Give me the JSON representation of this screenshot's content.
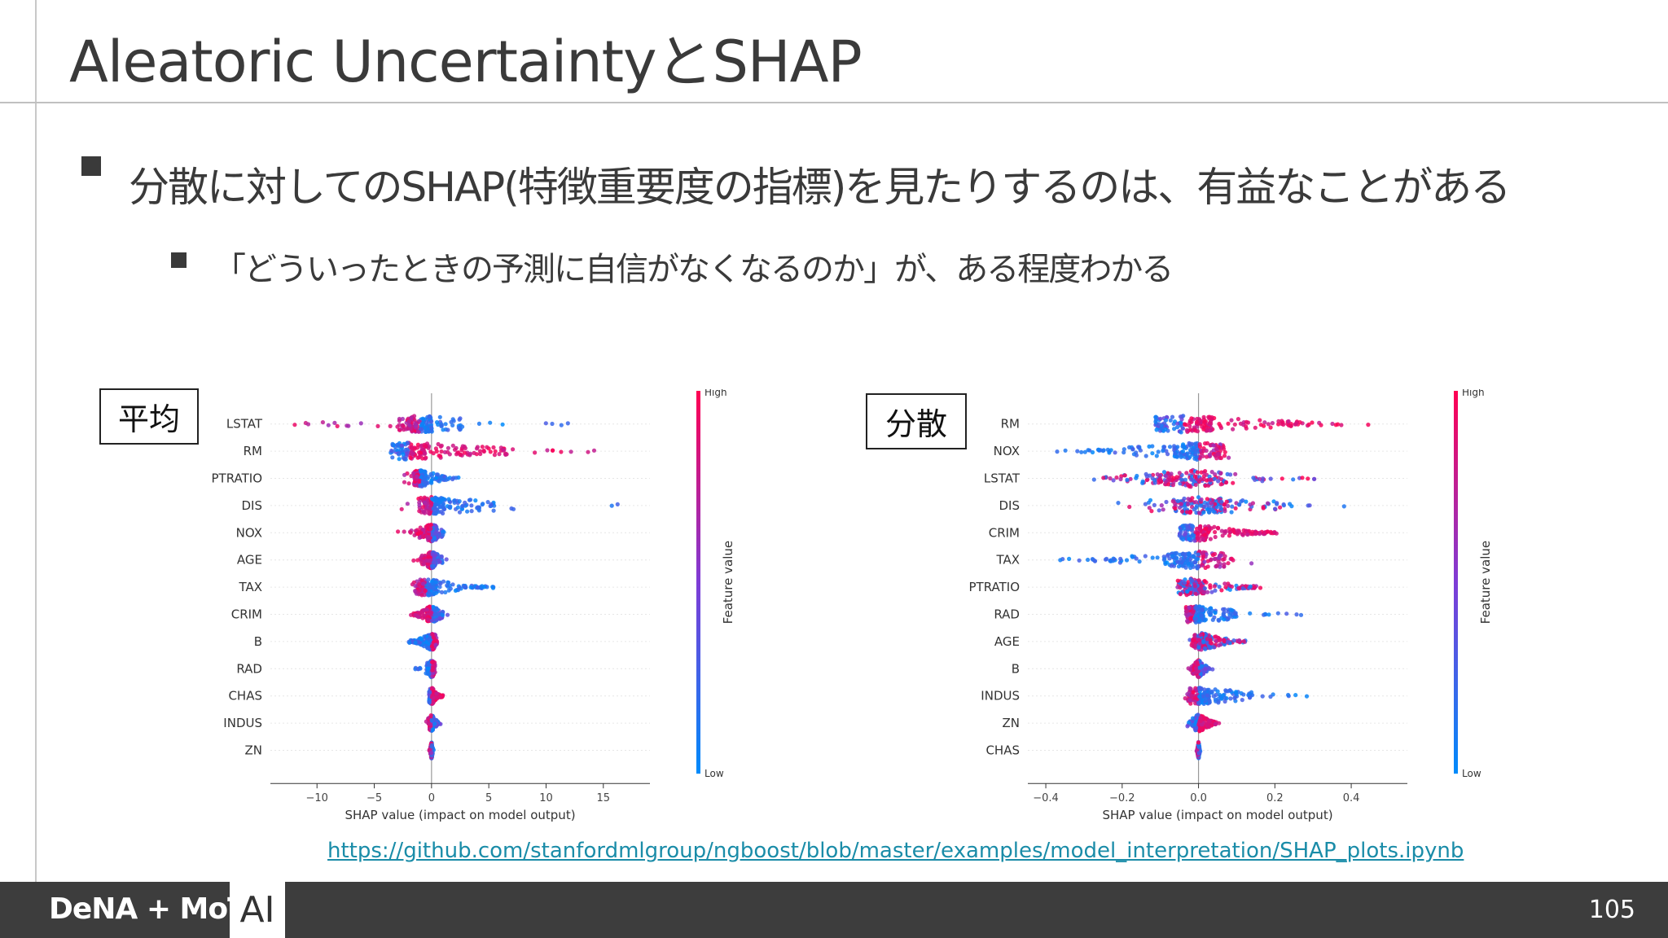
{
  "slide": {
    "title": "Aleatoric UncertaintyとSHAP",
    "bullet1": "分散に対してのSHAP(特徴重要度の指標)を見たりするのは、有益なことがある",
    "bullet2": "「どういったときの予測に自信がなくなるのか」が、ある程度わかる",
    "link": "https://github.com/stanfordmlgroup/ngboost/blob/master/examples/model_interpretation/SHAP_plots.ipynb",
    "footer_logo": "DeNA + MoT",
    "footer_ai": "AI",
    "page_number": "105"
  },
  "colors": {
    "high": "#ff0052",
    "low": "#008bfb",
    "link": "#1a8ca8",
    "footer": "#3d3d3d"
  },
  "chart_data": [
    {
      "type": "scatter",
      "subtype": "shap-beeswarm",
      "panel_label": "平均",
      "xlabel": "SHAP value (impact on model output)",
      "colorbar_label": "Feature value",
      "colorbar_high": "High",
      "colorbar_low": "Low",
      "xlim": [
        -13.5,
        18.5
      ],
      "xticks": [
        -10,
        -5,
        0,
        5,
        10,
        15
      ],
      "xtick_labels": [
        "−10",
        "−5",
        "0",
        "5",
        "10",
        "15"
      ],
      "features": [
        {
          "name": "LSTAT",
          "min": -12,
          "max": 12,
          "q1": -3,
          "q3": 3,
          "core": -1,
          "color_trend": "low-right"
        },
        {
          "name": "RM",
          "min": -4,
          "max": 15,
          "q1": -2.5,
          "q3": 6.5,
          "core": -2,
          "color_trend": "high-right"
        },
        {
          "name": "PTRATIO",
          "min": -3,
          "max": 2.5,
          "q1": -1.5,
          "q3": 1.5,
          "core": -1,
          "color_trend": "low-right"
        },
        {
          "name": "DIS",
          "min": -3,
          "max": 17,
          "q1": -1,
          "q3": 5.5,
          "core": 0,
          "color_trend": "low-right"
        },
        {
          "name": "NOX",
          "min": -3,
          "max": 1.5,
          "q1": -1.5,
          "q3": 1,
          "core": 0,
          "color_trend": "high-left"
        },
        {
          "name": "AGE",
          "min": -2,
          "max": 1.5,
          "q1": -1,
          "q3": 1,
          "core": 0,
          "color_trend": "high-left"
        },
        {
          "name": "TAX",
          "min": -2,
          "max": 5.5,
          "q1": -1,
          "q3": 4.5,
          "core": -0.5,
          "color_trend": "low-right"
        },
        {
          "name": "CRIM",
          "min": -2,
          "max": 2,
          "q1": -1.5,
          "q3": 1,
          "core": 0,
          "color_trend": "high-left"
        },
        {
          "name": "B",
          "min": -2,
          "max": 0.5,
          "q1": -2,
          "q3": 0.5,
          "core": 0,
          "color_trend": "low-left"
        },
        {
          "name": "RAD",
          "min": -1.5,
          "max": 0.5,
          "q1": -0.5,
          "q3": 0.3,
          "core": 0,
          "color_trend": "low-left"
        },
        {
          "name": "CHAS",
          "min": -0.2,
          "max": 1,
          "q1": -0.2,
          "q3": 1,
          "core": 0,
          "color_trend": "high-right"
        },
        {
          "name": "INDUS",
          "min": -0.5,
          "max": 0.8,
          "q1": -0.3,
          "q3": 0.6,
          "core": 0,
          "color_trend": "high-left"
        },
        {
          "name": "ZN",
          "min": -0.2,
          "max": 0.2,
          "q1": -0.1,
          "q3": 0.1,
          "core": 0,
          "color_trend": "low-right"
        }
      ]
    },
    {
      "type": "scatter",
      "subtype": "shap-beeswarm",
      "panel_label": "分散",
      "xlabel": "SHAP value (impact on model output)",
      "colorbar_label": "Feature value",
      "colorbar_high": "High",
      "colorbar_low": "Low",
      "xlim": [
        -0.43,
        0.53
      ],
      "xticks": [
        -0.4,
        -0.2,
        0.0,
        0.2,
        0.4
      ],
      "xtick_labels": [
        "−0.4",
        "−0.2",
        "0.0",
        "0.2",
        "0.4"
      ],
      "features": [
        {
          "name": "RM",
          "min": -0.16,
          "max": 0.45,
          "q1": -0.05,
          "q3": 0.38,
          "core": -0.04,
          "color_trend": "high-right"
        },
        {
          "name": "NOX",
          "min": -0.4,
          "max": 0.13,
          "q1": -0.3,
          "q3": 0.08,
          "core": 0,
          "color_trend": "low-left"
        },
        {
          "name": "LSTAT",
          "min": -0.3,
          "max": 0.33,
          "q1": -0.25,
          "q3": 0.25,
          "core": -0.02,
          "color_trend": "high-mixed"
        },
        {
          "name": "DIS",
          "min": -0.27,
          "max": 0.48,
          "q1": -0.15,
          "q3": 0.25,
          "core": 0,
          "color_trend": "low-mixed"
        },
        {
          "name": "CRIM",
          "min": -0.05,
          "max": 0.21,
          "q1": -0.03,
          "q3": 0.2,
          "core": -0.01,
          "color_trend": "high-right"
        },
        {
          "name": "TAX",
          "min": -0.39,
          "max": 0.16,
          "q1": -0.3,
          "q3": 0.1,
          "core": 0,
          "color_trend": "low-left"
        },
        {
          "name": "PTRATIO",
          "min": -0.08,
          "max": 0.18,
          "q1": -0.05,
          "q3": 0.15,
          "core": -0.02,
          "color_trend": "high-mixed"
        },
        {
          "name": "RAD",
          "min": -0.05,
          "max": 0.27,
          "q1": -0.03,
          "q3": 0.1,
          "core": -0.01,
          "color_trend": "low-right"
        },
        {
          "name": "AGE",
          "min": -0.03,
          "max": 0.13,
          "q1": -0.02,
          "q3": 0.12,
          "core": 0.01,
          "color_trend": "high-mixed"
        },
        {
          "name": "B",
          "min": -0.03,
          "max": 0.04,
          "q1": -0.02,
          "q3": 0.03,
          "core": 0,
          "color_trend": "high-left"
        },
        {
          "name": "INDUS",
          "min": -0.04,
          "max": 0.3,
          "q1": -0.02,
          "q3": 0.15,
          "core": 0,
          "color_trend": "low-right"
        },
        {
          "name": "ZN",
          "min": -0.03,
          "max": 0.06,
          "q1": -0.02,
          "q3": 0.05,
          "core": 0,
          "color_trend": "high-right"
        },
        {
          "name": "CHAS",
          "min": -0.005,
          "max": 0.005,
          "q1": -0.003,
          "q3": 0.003,
          "core": 0,
          "color_trend": "low-right"
        }
      ]
    }
  ]
}
